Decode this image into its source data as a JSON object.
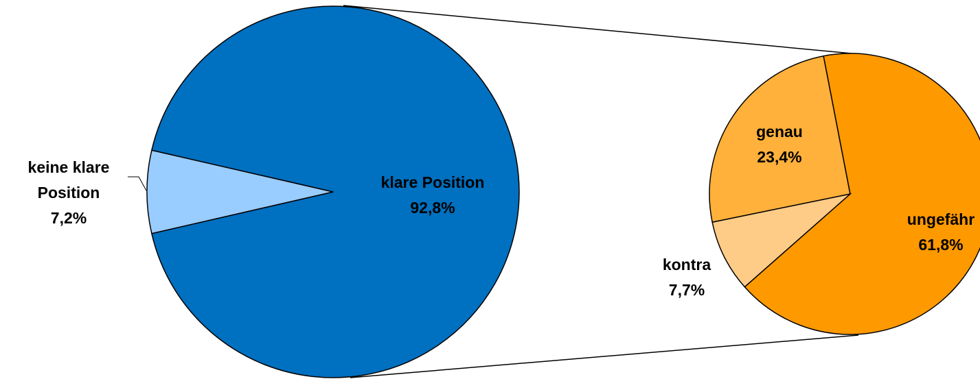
{
  "chart_data": [
    {
      "type": "pie",
      "categories": [
        "klare Position",
        "keine klare Position"
      ],
      "values": [
        92.8,
        7.2
      ],
      "value_labels": [
        "92,8%",
        "7,2%"
      ],
      "colors": [
        "#0070c0",
        "#99ccff"
      ]
    },
    {
      "type": "pie",
      "categories": [
        "genau",
        "ungefähr",
        "kontra"
      ],
      "values": [
        23.4,
        61.8,
        7.7
      ],
      "value_labels": [
        "23,4%",
        "61,8%",
        "7,7%"
      ],
      "colors": [
        "#ffb13b",
        "#ff9900",
        "#ffcc88"
      ]
    }
  ]
}
